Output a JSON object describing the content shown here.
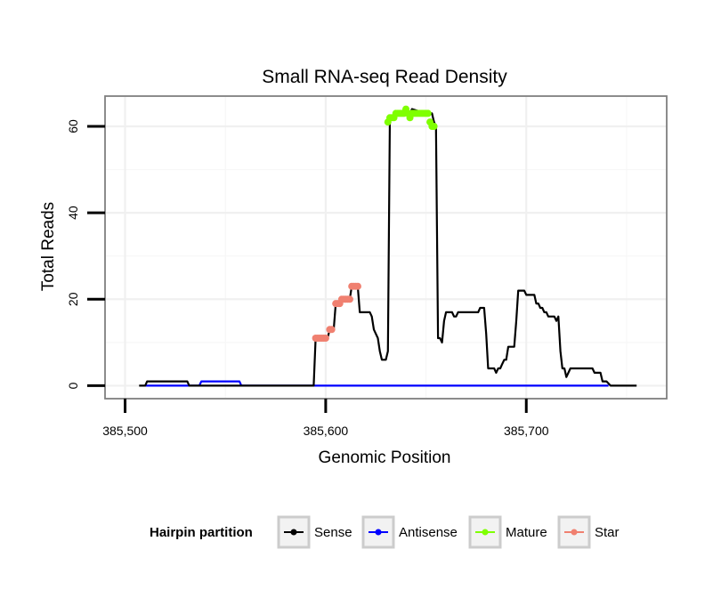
{
  "chart_data": {
    "type": "line",
    "title": "Small RNA-seq Read Density",
    "xlabel": "Genomic Position",
    "ylabel": "Total Reads",
    "xlim": [
      385490,
      385770
    ],
    "ylim": [
      -3,
      67
    ],
    "x_ticks": [
      385500,
      385600,
      385700
    ],
    "x_tick_labels": [
      "385,500",
      "385,600",
      "385,700"
    ],
    "y_ticks": [
      0,
      20,
      40,
      60
    ],
    "y_tick_labels": [
      "0",
      "20",
      "40",
      "60"
    ],
    "grid": true,
    "legend": {
      "title": "Hairpin partition",
      "position": "bottom",
      "entries": [
        {
          "name": "Sense",
          "color": "#000000"
        },
        {
          "name": "Antisense",
          "color": "#0000ff"
        },
        {
          "name": "Mature",
          "color": "#7fff00"
        },
        {
          "name": "Star",
          "color": "#f08070"
        }
      ]
    },
    "series": [
      {
        "name": "Sense",
        "color": "#000000",
        "style": "line",
        "x": [
          385507,
          385510,
          385511,
          385531,
          385532,
          385594,
          385595,
          385597,
          385599,
          385600,
          385601,
          385602,
          385603,
          385604,
          385605,
          385606,
          385607,
          385608,
          385609,
          385610,
          385611,
          385612,
          385613,
          385614,
          385615,
          385616,
          385617,
          385620,
          385621,
          385622,
          385623,
          385624,
          385625,
          385626,
          385627,
          385628,
          385629,
          385630,
          385631,
          385632,
          385635,
          385636,
          385640,
          385641,
          385642,
          385643,
          385650,
          385651,
          385652,
          385653,
          385654,
          385655,
          385656,
          385657,
          385658,
          385659,
          385660,
          385661,
          385663,
          385664,
          385665,
          385666,
          385667,
          385670,
          385672,
          385675,
          385676,
          385677,
          385678,
          385679,
          385680,
          385681,
          385682,
          385684,
          385685,
          385686,
          385687,
          385688,
          385689,
          385690,
          385691,
          385692,
          385693,
          385694,
          385695,
          385696,
          385698,
          385699,
          385700,
          385703,
          385704,
          385705,
          385706,
          385707,
          385708,
          385709,
          385710,
          385711,
          385712,
          385713,
          385714,
          385715,
          385716,
          385717,
          385718,
          385719,
          385720,
          385722,
          385725,
          385729,
          385730,
          385731,
          385732,
          385733,
          385734,
          385735,
          385736,
          385737,
          385738,
          385739,
          385740,
          385742,
          385745,
          385750,
          385755
        ],
        "y": [
          0,
          0,
          1,
          1,
          0,
          0,
          11,
          11,
          11,
          11,
          11,
          13,
          13,
          13,
          19,
          19,
          19,
          20,
          20,
          20,
          20,
          20,
          23,
          23,
          23,
          23,
          17,
          17,
          17,
          17,
          16,
          13,
          12,
          11,
          8,
          6,
          6,
          6,
          8,
          62,
          63,
          63,
          64,
          63,
          63,
          64,
          63,
          63,
          63,
          63,
          61,
          60,
          11,
          11,
          10,
          15,
          17,
          17,
          17,
          16,
          16,
          17,
          17,
          17,
          17,
          17,
          17,
          18,
          18,
          18,
          12,
          4,
          4,
          4,
          3,
          4,
          4,
          5,
          6,
          6,
          9,
          9,
          9,
          9,
          15,
          22,
          22,
          22,
          21,
          21,
          21,
          19,
          19,
          18,
          18,
          17,
          17,
          16,
          16,
          16,
          16,
          15,
          16,
          8,
          4,
          4,
          2,
          4,
          4,
          4,
          4,
          4,
          4,
          4,
          3,
          3,
          3,
          3,
          1,
          1,
          1,
          0,
          0,
          0,
          0
        ]
      },
      {
        "name": "Antisense",
        "color": "#0000ff",
        "style": "line",
        "x": [
          385510,
          385537,
          385538,
          385557,
          385558,
          385741
        ],
        "y": [
          0,
          0,
          1,
          1,
          0,
          0
        ]
      },
      {
        "name": "Mature",
        "color": "#7fff00",
        "style": "points",
        "x": [
          385631,
          385632,
          385633,
          385634,
          385635,
          385636,
          385637,
          385638,
          385639,
          385640,
          385641,
          385642,
          385643,
          385644,
          385645,
          385646,
          385647,
          385648,
          385649,
          385650,
          385651,
          385652,
          385653,
          385654
        ],
        "y": [
          61,
          62,
          62,
          62,
          63,
          63,
          63,
          63,
          63,
          64,
          63,
          62,
          63,
          63,
          63,
          63,
          63,
          63,
          63,
          63,
          63,
          61,
          60,
          60
        ]
      },
      {
        "name": "Star",
        "color": "#f08070",
        "style": "points",
        "x": [
          385595,
          385596,
          385597,
          385598,
          385599,
          385600,
          385602,
          385603,
          385605,
          385606,
          385607,
          385608,
          385609,
          385610,
          385611,
          385612,
          385613,
          385614,
          385615,
          385616
        ],
        "y": [
          11,
          11,
          11,
          11,
          11,
          11,
          13,
          13,
          19,
          19,
          19,
          20,
          20,
          20,
          20,
          20,
          23,
          23,
          23,
          23
        ]
      }
    ]
  }
}
